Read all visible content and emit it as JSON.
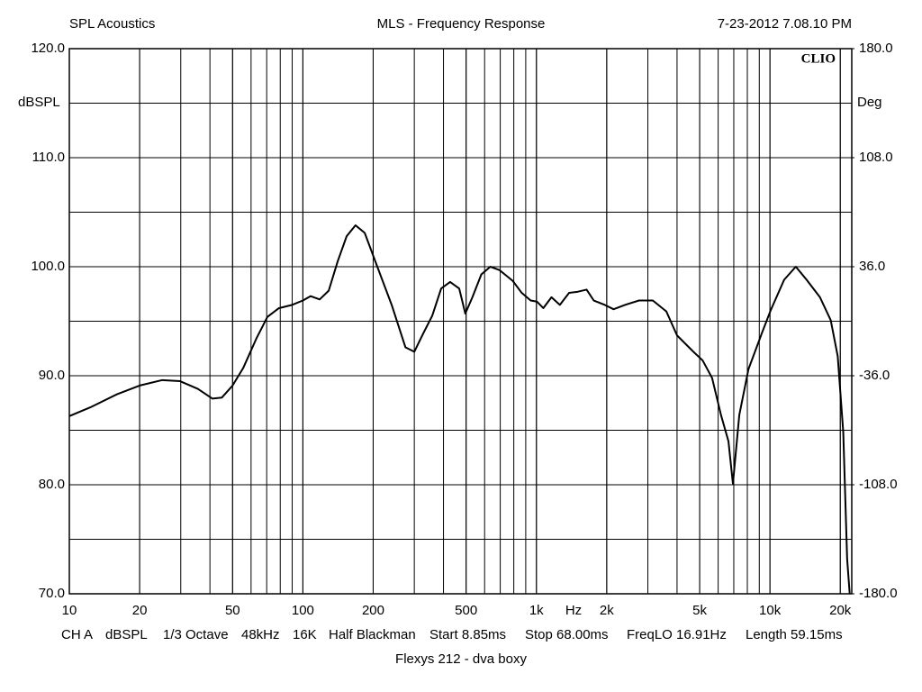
{
  "chart_data": {
    "type": "line",
    "header": {
      "left": "SPL Acoustics",
      "title": "MLS - Frequency Response",
      "right": "7-23-2012 7.08.10 PM"
    },
    "brand": "CLIO",
    "ylabel": "dBSPL",
    "y2label": "Deg",
    "xlabel": "Hz",
    "footer": [
      "CH A",
      "dBSPL",
      "1/3 Octave",
      "48kHz",
      "16K",
      "Half Blackman",
      "Start 8.85ms",
      "Stop 68.00ms",
      "FreqLO 16.91Hz",
      "Length 59.15ms"
    ],
    "subtitle": "Flexys 212 - dva boxy",
    "xscale": "log",
    "grid": true,
    "color": "#000000",
    "xlim": [
      10,
      22400
    ],
    "xticks": [
      10,
      20,
      50,
      100,
      200,
      500,
      {
        "value": 1000,
        "label": "1k"
      },
      {
        "value": 2000,
        "label": "2k"
      },
      {
        "value": 5000,
        "label": "5k"
      },
      {
        "value": 10000,
        "label": "10k"
      },
      {
        "value": 20000,
        "label": "20k"
      }
    ],
    "ylim": [
      70,
      120
    ],
    "yticks": [
      {
        "value": 70,
        "label": "70.0"
      },
      {
        "value": 80,
        "label": "80.0"
      },
      {
        "value": 90,
        "label": "90.0"
      },
      {
        "value": 100,
        "label": "100.0"
      },
      {
        "value": 110,
        "label": "110.0"
      },
      {
        "value": 120,
        "label": "120.0"
      }
    ],
    "y2lim": [
      -180,
      180
    ],
    "y2ticks": [
      {
        "value": -180,
        "label": "-180.0"
      },
      {
        "value": -108,
        "label": "-108.0"
      },
      {
        "value": -36,
        "label": "-36.0"
      },
      {
        "value": 36,
        "label": "36.0"
      },
      {
        "value": 108,
        "label": "108.0"
      },
      {
        "value": 180,
        "label": "180.0"
      }
    ],
    "x": [
      10,
      12.3,
      16,
      20,
      25,
      29.8,
      35.5,
      41,
      45,
      50,
      55.5,
      63.5,
      70.5,
      79,
      90,
      100,
      108,
      118,
      129,
      141,
      154,
      168,
      184,
      210,
      240,
      275,
      300,
      328,
      358,
      391,
      427,
      467,
      496,
      532,
      581,
      635,
      694,
      792,
      865,
      945,
      1005,
      1070,
      1160,
      1260,
      1380,
      1500,
      1640,
      1760,
      1960,
      2140,
      2400,
      2750,
      3150,
      3600,
      4000,
      4700,
      5150,
      5650,
      6170,
      6640,
      6940,
      7390,
      8090,
      9230,
      10070,
      11500,
      12900,
      14350,
      16370,
      18200,
      19500,
      20600,
      21400,
      21950
    ],
    "values": [
      86.3,
      87.1,
      88.3,
      89.1,
      89.6,
      89.5,
      88.8,
      87.9,
      88.0,
      89.1,
      90.7,
      93.5,
      95.4,
      96.2,
      96.5,
      96.9,
      97.3,
      97.0,
      97.8,
      100.5,
      102.8,
      103.8,
      103.1,
      99.8,
      96.5,
      92.6,
      92.2,
      93.9,
      95.5,
      98.0,
      98.6,
      98.0,
      95.7,
      97.2,
      99.3,
      100.0,
      99.7,
      98.7,
      97.6,
      96.9,
      96.8,
      96.2,
      97.2,
      96.5,
      97.6,
      97.7,
      97.9,
      96.9,
      96.5,
      96.1,
      96.5,
      96.9,
      96.9,
      95.9,
      93.7,
      92.2,
      91.4,
      89.8,
      86.4,
      84.0,
      80.1,
      86.4,
      90.6,
      93.9,
      96.0,
      98.8,
      100.0,
      98.8,
      97.2,
      95.1,
      91.8,
      84.8,
      73.2,
      70.0
    ]
  }
}
